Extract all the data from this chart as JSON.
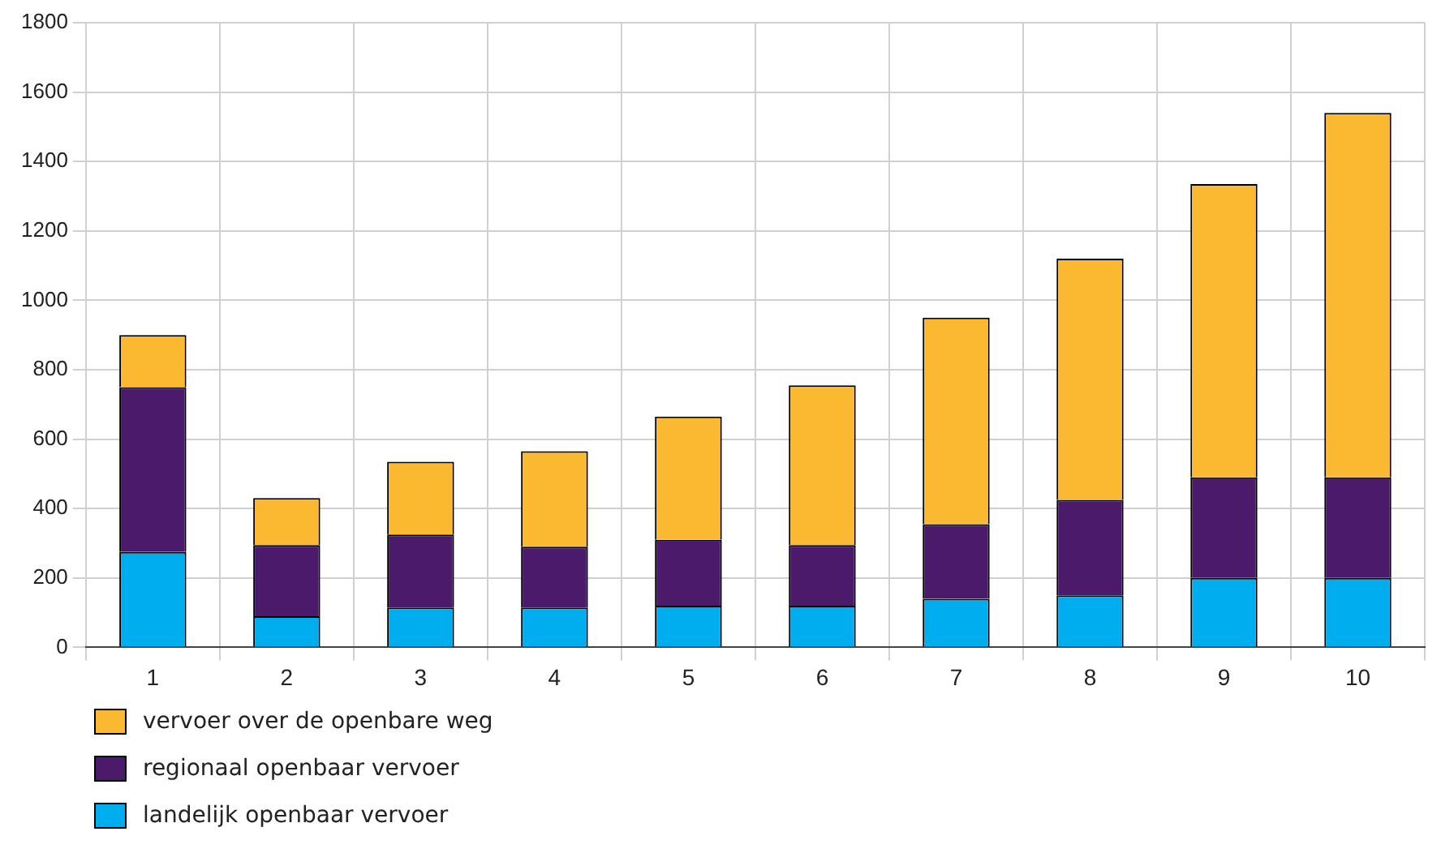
{
  "chart_data": {
    "type": "bar",
    "stacked": true,
    "categories": [
      "1",
      "2",
      "3",
      "4",
      "5",
      "6",
      "7",
      "8",
      "9",
      "10"
    ],
    "series": [
      {
        "name": "landelijk openbaar vervoer",
        "color": "#00aeef",
        "values": [
          275,
          90,
          115,
          115,
          120,
          120,
          140,
          150,
          200,
          200
        ]
      },
      {
        "name": "regionaal openbaar vervoer",
        "color": "#4b1a6b",
        "values": [
          475,
          205,
          210,
          175,
          190,
          175,
          215,
          275,
          290,
          290
        ]
      },
      {
        "name": "vervoer over de openbare weg",
        "color": "#fbb931",
        "values": [
          150,
          135,
          210,
          275,
          355,
          460,
          595,
          695,
          845,
          1050
        ]
      }
    ],
    "ylim": [
      0,
      1800
    ],
    "yticks": [
      0,
      200,
      400,
      600,
      800,
      1000,
      1200,
      1400,
      1600,
      1800
    ],
    "grid": true,
    "legend": "bottom"
  }
}
